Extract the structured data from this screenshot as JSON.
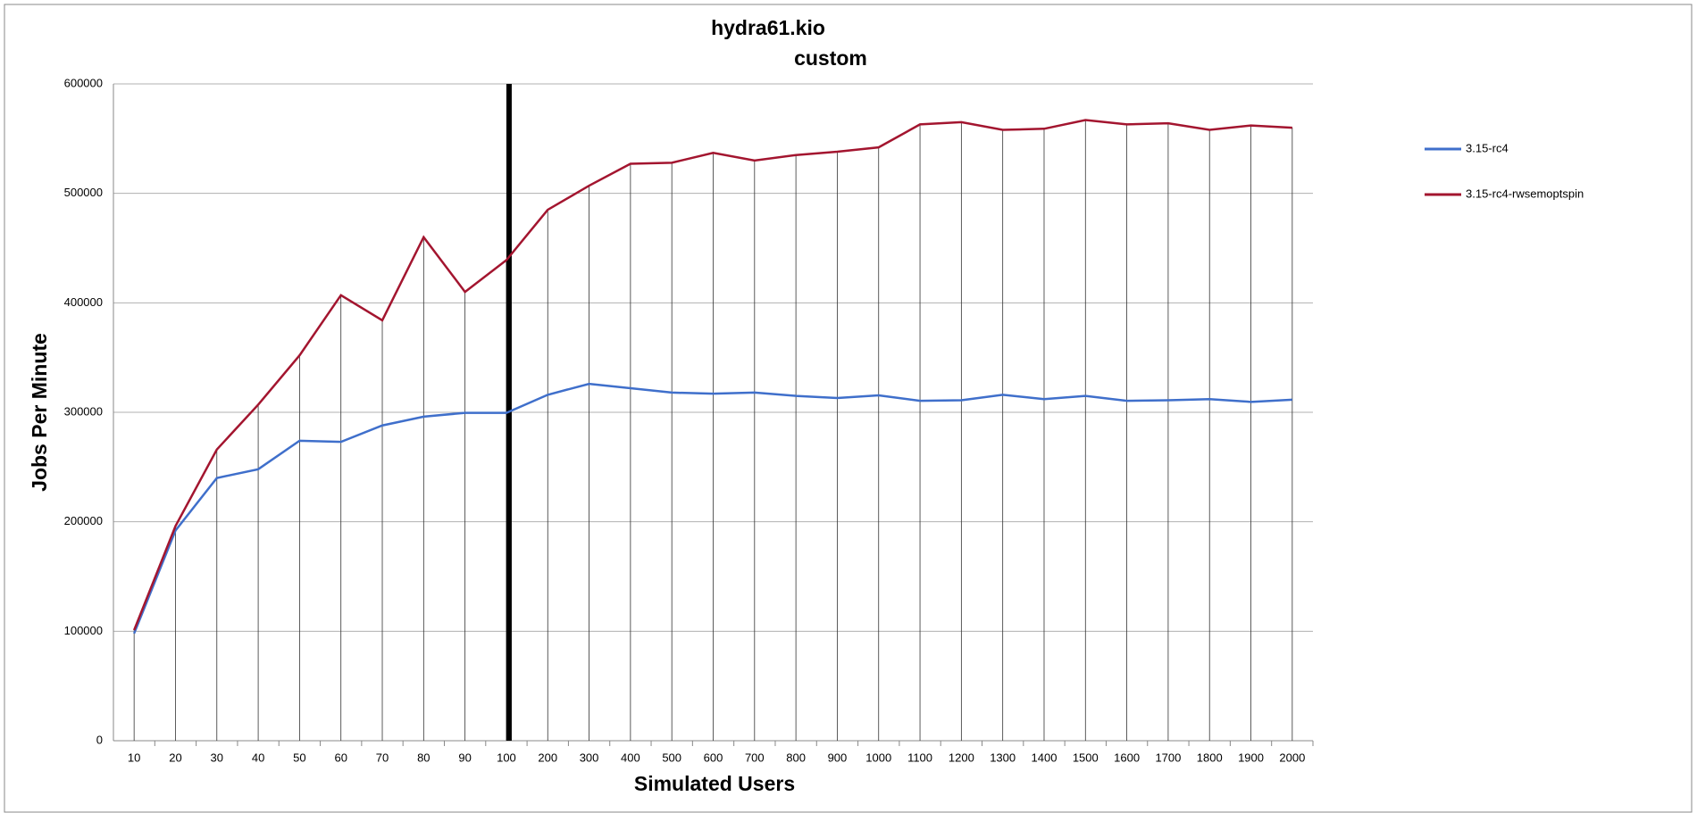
{
  "chart_data": {
    "type": "line",
    "title": "hydra61.kio",
    "subtitle": "custom",
    "x_label": "Simulated Users",
    "y_label": "Jobs Per Minute",
    "categories": [
      "10",
      "20",
      "30",
      "40",
      "50",
      "60",
      "70",
      "80",
      "90",
      "100",
      "200",
      "300",
      "400",
      "500",
      "600",
      "700",
      "800",
      "900",
      "1000",
      "1100",
      "1200",
      "1300",
      "1400",
      "1500",
      "1600",
      "1700",
      "1800",
      "1900",
      "2000"
    ],
    "series": [
      {
        "name": "3.15-rc4",
        "color": "#3f6fcb",
        "values": [
          98000,
          192000,
          240000,
          248000,
          274000,
          273000,
          288000,
          296000,
          299500,
          299500,
          316000,
          326000,
          322000,
          318000,
          317000,
          318000,
          315000,
          313000,
          315500,
          310500,
          311000,
          316000,
          312000,
          315000,
          310500,
          311000,
          312000,
          309500,
          311500
        ]
      },
      {
        "name": "3.15-rc4-rwsemoptspin",
        "color": "#a3152f",
        "values": [
          101000,
          196000,
          266000,
          307000,
          352000,
          407000,
          384000,
          460000,
          410000,
          439000,
          485000,
          507000,
          527000,
          528000,
          537000,
          530000,
          535000,
          538000,
          542000,
          563000,
          565000,
          558000,
          559000,
          567000,
          563000,
          564000,
          558000,
          562000,
          560000
        ]
      }
    ],
    "ylim": [
      0,
      600000
    ],
    "yticks": [
      0,
      100000,
      200000,
      300000,
      400000,
      500000,
      600000
    ],
    "grid": true,
    "legend": "right"
  }
}
